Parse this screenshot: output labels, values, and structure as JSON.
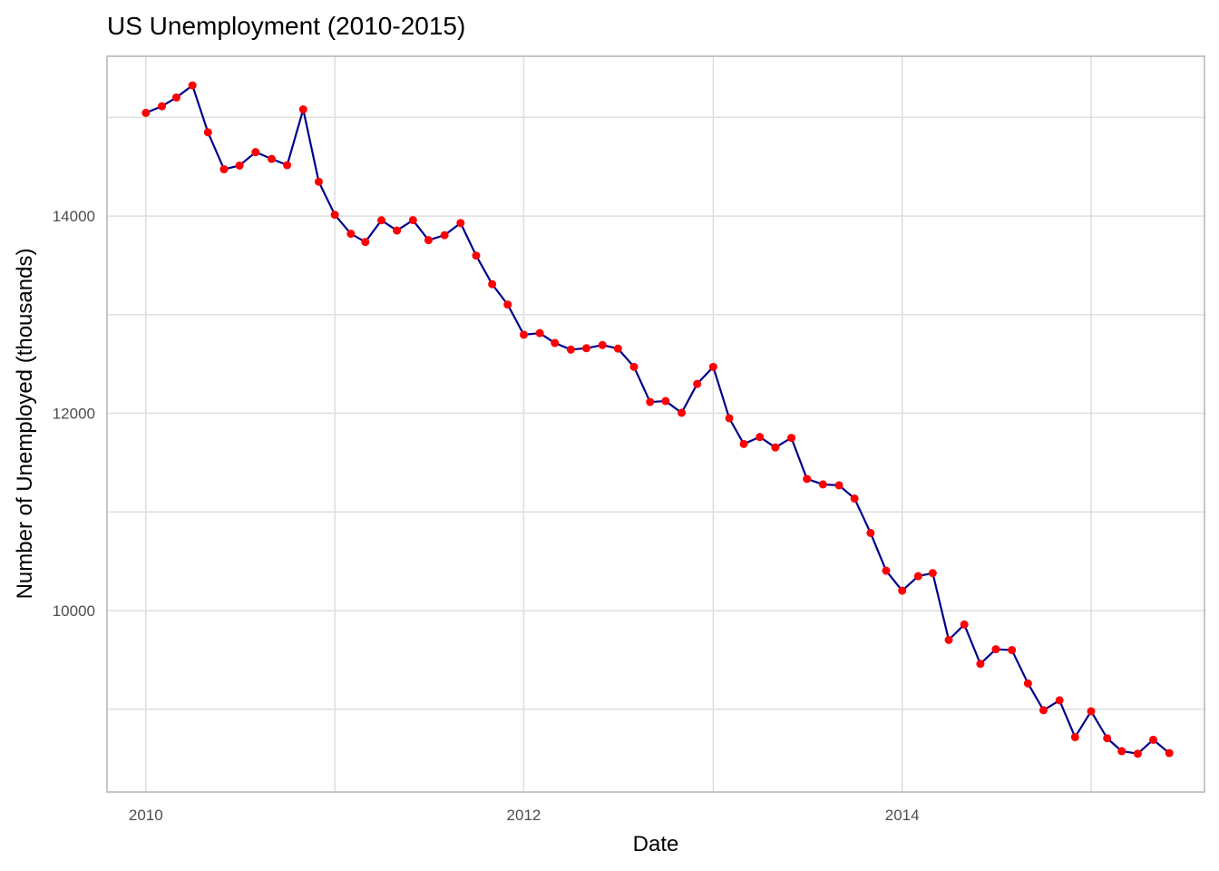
{
  "chart_data": {
    "type": "line",
    "title": "US Unemployment (2010-2015)",
    "xlabel": "Date",
    "ylabel": "Number of Unemployed (thousands)",
    "x_ticks": [
      "2010",
      "2012",
      "2014"
    ],
    "y_ticks": [
      "10000",
      "12000",
      "14000"
    ],
    "xlim": [
      "2009-10-18",
      "2015-08-08"
    ],
    "ylim": [
      8160,
      15620
    ],
    "grid": true,
    "legend": "none",
    "line_color": "#00008b",
    "point_color": "#ff0000",
    "series": [
      {
        "x": [
          "2010-01-01",
          "2010-02-01",
          "2010-03-01",
          "2010-04-01",
          "2010-05-01",
          "2010-06-01",
          "2010-07-01",
          "2010-08-01",
          "2010-09-01",
          "2010-10-01",
          "2010-11-01",
          "2010-12-01",
          "2011-01-01",
          "2011-02-01",
          "2011-03-01",
          "2011-04-01",
          "2011-05-01",
          "2011-06-01",
          "2011-07-01",
          "2011-08-01",
          "2011-09-01",
          "2011-10-01",
          "2011-11-01",
          "2011-12-01",
          "2012-01-01",
          "2012-02-01",
          "2012-03-01",
          "2012-04-01",
          "2012-05-01",
          "2012-06-01",
          "2012-07-01",
          "2012-08-01",
          "2012-09-01",
          "2012-10-01",
          "2012-11-01",
          "2012-12-01",
          "2013-01-01",
          "2013-02-01",
          "2013-03-01",
          "2013-04-01",
          "2013-05-01",
          "2013-06-01",
          "2013-07-01",
          "2013-08-01",
          "2013-09-01",
          "2013-10-01",
          "2013-11-01",
          "2013-12-01",
          "2014-01-01",
          "2014-02-01",
          "2014-03-01",
          "2014-04-01",
          "2014-05-01",
          "2014-06-01",
          "2014-07-01",
          "2014-08-01",
          "2014-09-01",
          "2014-10-01",
          "2014-11-01",
          "2014-12-01",
          "2015-01-01",
          "2015-02-01",
          "2015-03-01",
          "2015-04-01",
          "2015-05-01",
          "2015-06-01"
        ],
        "values": [
          15046,
          15113,
          15202,
          15325,
          14849,
          14474,
          14512,
          14648,
          14579,
          14516,
          15081,
          14348,
          14013,
          13820,
          13737,
          13957,
          13853,
          13958,
          13756,
          13806,
          13929,
          13599,
          13309,
          13102,
          12797,
          12813,
          12713,
          12646,
          12660,
          12692,
          12656,
          12471,
          12115,
          12124,
          12005,
          12298,
          12471,
          11950,
          11689,
          11760,
          11654,
          11751,
          11335,
          11279,
          11270,
          11136,
          10787,
          10404,
          10202,
          10349,
          10380,
          9702,
          9859,
          9460,
          9608,
          9599,
          9262,
          8990,
          9090,
          8717,
          8979,
          8705,
          8575,
          8549,
          8690,
          8555
        ]
      }
    ]
  }
}
